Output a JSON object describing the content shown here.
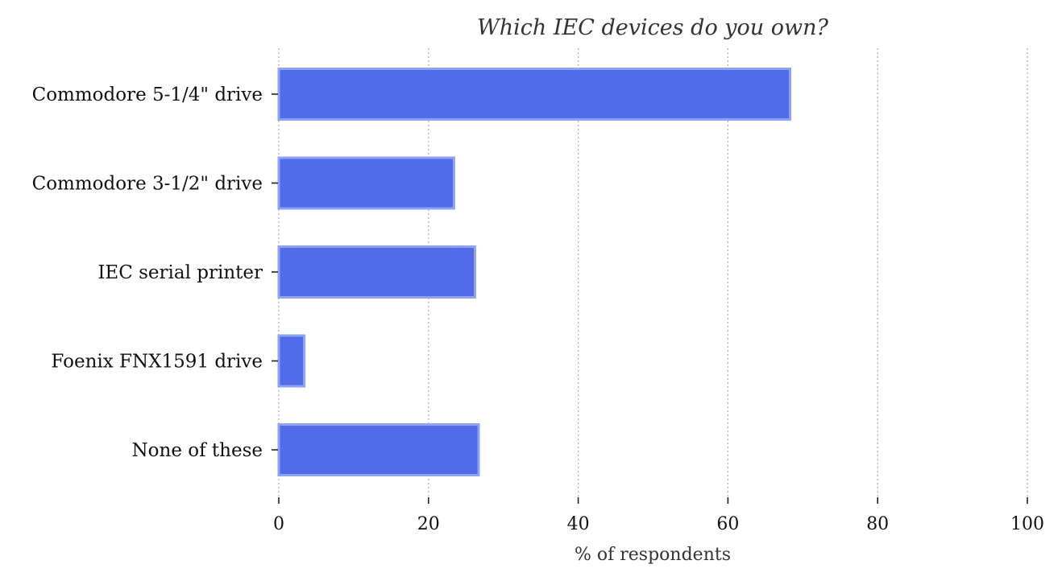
{
  "chart_data": {
    "type": "bar",
    "orientation": "horizontal",
    "title": "Which IEC devices do you own?",
    "xlabel": "% of respondents",
    "ylabel": "",
    "categories": [
      "Commodore 5-1/4\" drive",
      "Commodore 3-1/2\" drive",
      "IEC serial printer",
      "Foenix FNX1591 drive",
      "None of these"
    ],
    "values": [
      68.3,
      23.4,
      26.2,
      3.4,
      26.7
    ],
    "xlim": [
      0,
      100
    ],
    "xticks": [
      0,
      20,
      40,
      60,
      80,
      100
    ],
    "grid": "vertical dotted",
    "legend": "none",
    "colors": {
      "bar_fill": "#506ce8",
      "bar_edge": "#8ea3f5"
    }
  }
}
